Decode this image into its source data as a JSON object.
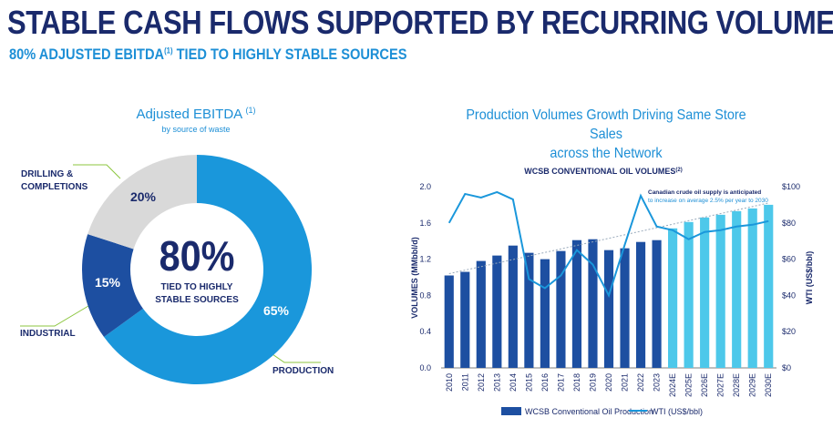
{
  "header": {
    "title": "STABLE CASH FLOWS SUPPORTED BY RECURRING VOLUMES",
    "subtitle_main": "80% ADJUSTED EBITDA",
    "subtitle_sup": "(1)",
    "subtitle_rest": " TIED TO HIGHLY STABLE SOURCES"
  },
  "colors": {
    "navy": "#1a2a6c",
    "production": "#1a97db",
    "drilling": "#d9d9d9",
    "industrial": "#1d4fa1",
    "forecast": "#4dc8ea",
    "accent_line": "#8cc63f"
  },
  "donut": {
    "title": "Adjusted EBITDA",
    "title_sup": "(1)",
    "subtitle": "by source of waste",
    "center_value": "80%",
    "center_line1": "TIED TO HIGHLY",
    "center_line2": "STABLE SOURCES",
    "segment_labels": {
      "drilling_line1": "DRILLING &",
      "drilling_line2": "COMPLETIONS",
      "industrial": "INDUSTRIAL",
      "production": "PRODUCTION"
    }
  },
  "chart_data": [
    {
      "type": "pie",
      "title": "Adjusted EBITDA (1)",
      "categories": [
        "PRODUCTION",
        "INDUSTRIAL",
        "DRILLING & COMPLETIONS"
      ],
      "values": [
        65,
        15,
        20
      ],
      "value_labels": [
        "65%",
        "15%",
        "20%"
      ]
    },
    {
      "type": "bar",
      "title": "Production Volumes Growth Driving Same Store Sales across the Network",
      "title_line1": "Production Volumes Growth Driving Same Store Sales",
      "title_line2": "across the Network",
      "subtitle": "WCSB CONVENTIONAL OIL VOLUMES",
      "subtitle_sup": "(2)",
      "categories": [
        "2010",
        "2011",
        "2012",
        "2013",
        "2014",
        "2015",
        "2016",
        "2017",
        "2018",
        "2019",
        "2020",
        "2021",
        "2022",
        "2023",
        "2024E",
        "2025E",
        "2026E",
        "2027E",
        "2028E",
        "2029E",
        "2030E"
      ],
      "forecast_from_index": 14,
      "series": [
        {
          "name": "WCSB Conventional Oil Production",
          "axis": "left",
          "values": [
            1.02,
            1.06,
            1.18,
            1.24,
            1.35,
            1.27,
            1.2,
            1.29,
            1.41,
            1.42,
            1.3,
            1.32,
            1.39,
            1.41,
            1.54,
            1.61,
            1.66,
            1.69,
            1.73,
            1.76,
            1.8
          ]
        },
        {
          "name": "WTI (US$/bbl)",
          "axis": "right",
          "type": "line",
          "values": [
            80,
            96,
            94,
            97,
            93,
            49,
            44,
            51,
            65,
            57,
            40,
            68,
            95,
            78,
            76,
            71,
            75,
            76,
            78,
            79,
            81
          ]
        }
      ],
      "trend": {
        "start": 1.04,
        "end": 1.82
      },
      "annotation_line1": "Canadian crude oil supply is anticipated",
      "annotation_line2": "to increase on average 2.5% per year to 2030",
      "ylabel": "VOLUMES (MMbbl/d)",
      "y2label": "WTI (US$/bbl)",
      "ylim": [
        0,
        2.0
      ],
      "y_ticks": [
        "0.0",
        "0.4",
        "0.8",
        "1.2",
        "1.6",
        "2.0"
      ],
      "y2lim": [
        0,
        100
      ],
      "y2_ticks": [
        "$0",
        "$20",
        "$40",
        "$60",
        "$80",
        "$100"
      ],
      "legend_bar": "WCSB Conventional Oil Production",
      "legend_line": "WTI (US$/bbl)"
    }
  ]
}
